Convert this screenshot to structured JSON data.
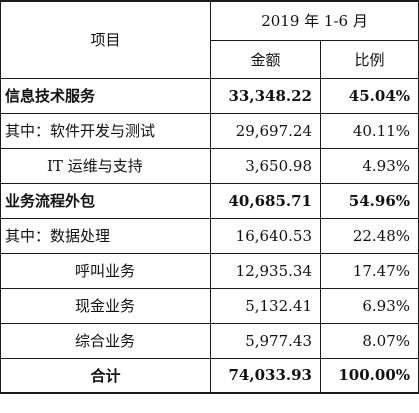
{
  "table": {
    "header": {
      "item_label": "项目",
      "period_label": "2019 年 1-6 月",
      "amount_label": "金额",
      "ratio_label": "比例"
    },
    "rows": [
      {
        "label": "信息技术服务",
        "amount": "33,348.22",
        "ratio": "45.04%"
      },
      {
        "label": "其中：软件开发与测试",
        "amount": "29,697.24",
        "ratio": "40.11%"
      },
      {
        "label": "IT 运维与支持",
        "amount": "3,650.98",
        "ratio": "4.93%"
      },
      {
        "label": "业务流程外包",
        "amount": "40,685.71",
        "ratio": "54.96%"
      },
      {
        "label": "其中：数据处理",
        "amount": "16,640.53",
        "ratio": "22.48%"
      },
      {
        "label": "呼叫业务",
        "amount": "12,935.34",
        "ratio": "17.47%"
      },
      {
        "label": "现金业务",
        "amount": "5,132.41",
        "ratio": "6.93%"
      },
      {
        "label": "综合业务",
        "amount": "5,977.43",
        "ratio": "8.07%"
      },
      {
        "label": "合计",
        "amount": "74,033.93",
        "ratio": "100.00%"
      }
    ]
  }
}
